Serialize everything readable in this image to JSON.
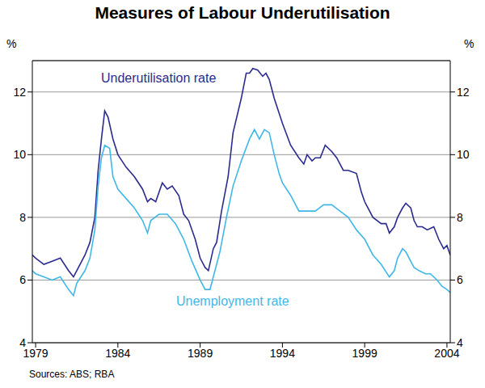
{
  "chart_data": {
    "type": "line",
    "title": "Measures of Labour Underutilisation",
    "y_label": "%",
    "source": "Sources: ABS; RBA",
    "xlim": [
      1978.8,
      2004.2
    ],
    "xticks": [
      1979,
      1984,
      1989,
      1994,
      1999,
      2004
    ],
    "ylim": [
      4,
      13
    ],
    "yticks": [
      4,
      6,
      8,
      10,
      12
    ],
    "grid": true,
    "series": [
      {
        "name": "Underutilisation rate",
        "color": "#2b2b8f",
        "x": [
          1978.8,
          1979,
          1979.5,
          1980,
          1980.5,
          1981,
          1981.3,
          1981.5,
          1982,
          1982.3,
          1982.6,
          1982.8,
          1983,
          1983.2,
          1983.4,
          1983.7,
          1984,
          1984.5,
          1985,
          1985.5,
          1985.8,
          1986,
          1986.3,
          1986.7,
          1987,
          1987.3,
          1987.7,
          1988,
          1988.3,
          1988.7,
          1989,
          1989.3,
          1989.5,
          1989.8,
          1990,
          1990.3,
          1990.7,
          1991,
          1991.5,
          1991.8,
          1992,
          1992.2,
          1992.5,
          1992.8,
          1993,
          1993.2,
          1993.5,
          1994,
          1994.5,
          1995,
          1995.3,
          1995.5,
          1995.8,
          1996,
          1996.3,
          1996.6,
          1997,
          1997.3,
          1997.7,
          1998,
          1998.5,
          1998.8,
          1999,
          1999.5,
          2000,
          2000.3,
          2000.5,
          2000.8,
          2001,
          2001.3,
          2001.5,
          2001.8,
          2002,
          2002.2,
          2002.5,
          2002.8,
          2003,
          2003.2,
          2003.5,
          2003.8,
          2004,
          2004.2
        ],
        "values": [
          6.8,
          6.7,
          6.5,
          6.6,
          6.7,
          6.3,
          6.1,
          6.3,
          6.8,
          7.2,
          8.0,
          9.5,
          10.5,
          11.4,
          11.2,
          10.5,
          10.0,
          9.6,
          9.3,
          8.9,
          8.5,
          8.6,
          8.5,
          9.1,
          8.9,
          9.0,
          8.7,
          8.1,
          7.9,
          7.3,
          6.7,
          6.4,
          6.3,
          7.0,
          7.2,
          8.2,
          9.3,
          10.7,
          11.8,
          12.6,
          12.6,
          12.75,
          12.7,
          12.5,
          12.6,
          12.4,
          11.8,
          11.0,
          10.3,
          9.9,
          9.7,
          10.0,
          9.8,
          9.9,
          9.9,
          10.3,
          10.1,
          9.9,
          9.5,
          9.5,
          9.4,
          8.8,
          8.5,
          8.0,
          7.8,
          7.8,
          7.5,
          7.7,
          8.0,
          8.3,
          8.45,
          8.3,
          7.9,
          7.7,
          7.7,
          7.6,
          7.65,
          7.7,
          7.3,
          7.0,
          7.1,
          6.8
        ]
      },
      {
        "name": "Unemployment rate",
        "color": "#3fb8e8",
        "x": [
          1978.8,
          1979,
          1979.5,
          1980,
          1980.5,
          1981,
          1981.3,
          1981.5,
          1982,
          1982.3,
          1982.6,
          1982.8,
          1983,
          1983.2,
          1983.5,
          1983.7,
          1984,
          1984.5,
          1985,
          1985.5,
          1985.8,
          1986,
          1986.5,
          1987,
          1987.5,
          1988,
          1988.5,
          1989,
          1989.3,
          1989.6,
          1989.9,
          1990.2,
          1990.6,
          1991,
          1991.5,
          1992,
          1992.3,
          1992.6,
          1992.9,
          1993.2,
          1993.5,
          1993.8,
          1994,
          1994.5,
          1995,
          1995.5,
          1996,
          1996.5,
          1997,
          1997.5,
          1998,
          1998.5,
          1999,
          1999.5,
          2000,
          2000.5,
          2000.8,
          2001,
          2001.3,
          2001.5,
          2002,
          2002.3,
          2002.7,
          2003,
          2003.4,
          2003.7,
          2004,
          2004.2
        ],
        "values": [
          6.3,
          6.2,
          6.1,
          6.0,
          6.1,
          5.7,
          5.5,
          5.9,
          6.3,
          6.7,
          7.6,
          9.0,
          9.9,
          10.3,
          10.2,
          9.3,
          8.9,
          8.6,
          8.3,
          7.9,
          7.5,
          7.9,
          8.1,
          8.1,
          7.8,
          7.3,
          6.6,
          6.0,
          5.7,
          5.7,
          6.3,
          6.9,
          8.0,
          9.0,
          9.8,
          10.5,
          10.8,
          10.5,
          10.8,
          10.7,
          10.0,
          9.4,
          9.1,
          8.7,
          8.2,
          8.2,
          8.2,
          8.4,
          8.4,
          8.2,
          8.0,
          7.6,
          7.3,
          6.8,
          6.5,
          6.1,
          6.3,
          6.7,
          7.0,
          6.9,
          6.4,
          6.3,
          6.2,
          6.2,
          6.0,
          5.8,
          5.7,
          5.6
        ]
      }
    ]
  }
}
